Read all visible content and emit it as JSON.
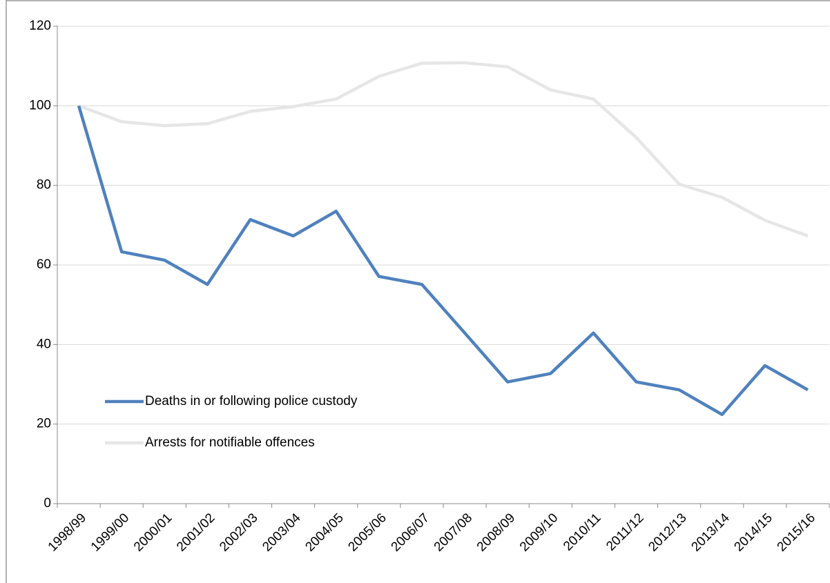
{
  "chart_data": {
    "type": "line",
    "categories": [
      "1998/99",
      "1999/00",
      "2000/01",
      "2001/02",
      "2002/03",
      "2003/04",
      "2004/05",
      "2005/06",
      "2006/07",
      "2007/08",
      "2008/09",
      "2009/10",
      "2010/11",
      "2011/12",
      "2012/13",
      "2013/14",
      "2014/15",
      "2015/16"
    ],
    "series": [
      {
        "name": "Deaths in or following police custody",
        "color": "#4f81bd",
        "values": [
          100,
          63.3,
          61.2,
          55.1,
          71.4,
          67.3,
          73.5,
          57.1,
          55.1,
          42.9,
          30.6,
          32.7,
          42.9,
          30.6,
          28.6,
          22.4,
          34.7,
          28.6
        ]
      },
      {
        "name": "Arrests for notifiable offences",
        "color": "#e6e6e6",
        "values": [
          100,
          96,
          95,
          95.5,
          98.6,
          99.8,
          101.7,
          107.4,
          110.7,
          110.8,
          109.8,
          104,
          101.7,
          92,
          80.3,
          77,
          71.2,
          67.3
        ]
      }
    ],
    "ylim": [
      0,
      120
    ],
    "yticks": [
      0,
      20,
      40,
      60,
      80,
      100,
      120
    ],
    "grid": true
  }
}
